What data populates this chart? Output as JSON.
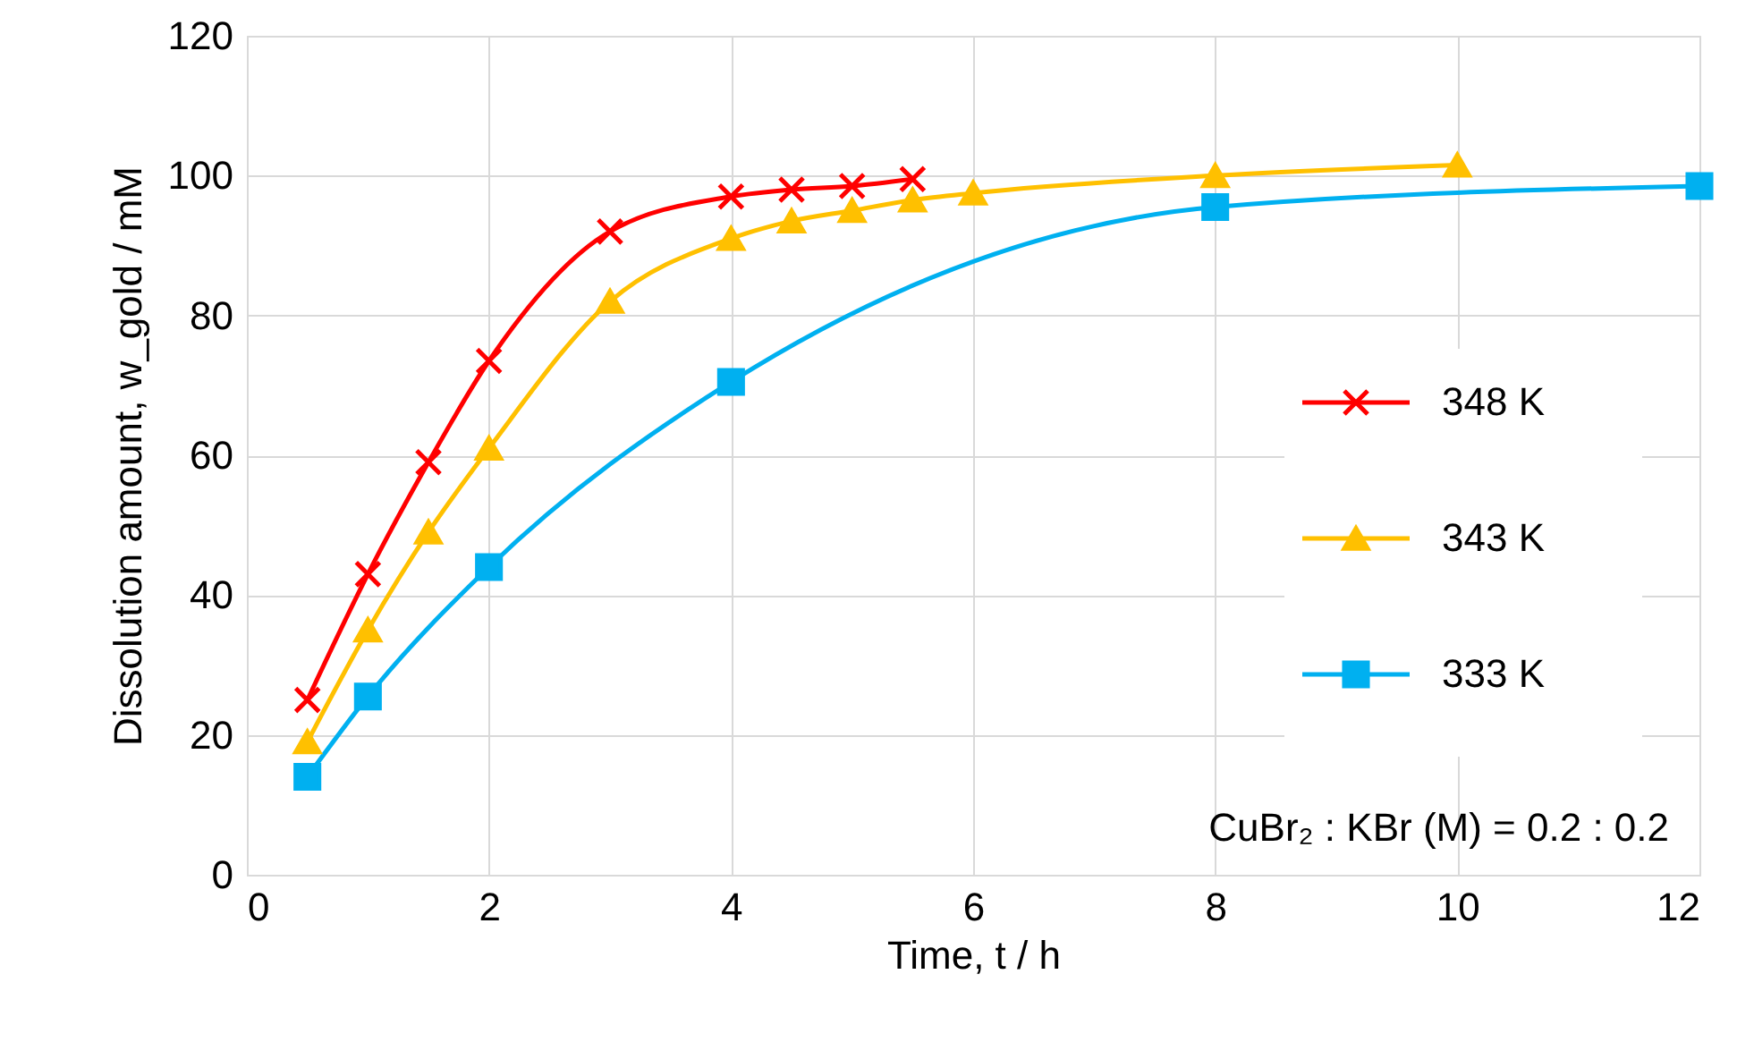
{
  "chart_data": {
    "type": "line",
    "xlabel": "Time, t / h",
    "ylabel": "Dissolution amount, w_gold / mM",
    "xlim": [
      0,
      12
    ],
    "xticks": [
      0,
      2,
      4,
      6,
      8,
      10,
      12
    ],
    "ylim": [
      0,
      120
    ],
    "yticks": [
      0,
      20,
      40,
      60,
      80,
      100,
      120
    ],
    "grid": true,
    "legend": "right",
    "line_style": "solid",
    "annotations": [
      {
        "text": "CuBr₂ : KBr (M) = 0.2 : 0.2"
      }
    ],
    "series": [
      {
        "name": "348 K",
        "color": "#ff0000",
        "marker": "cross",
        "x": [
          0.5,
          1,
          1.5,
          2,
          3,
          4,
          4.5,
          5,
          5.5
        ],
        "values": [
          25,
          43,
          59,
          73.5,
          92,
          97,
          98,
          98.5,
          99.5
        ]
      },
      {
        "name": "343 K",
        "color": "#ffc000",
        "marker": "triangle",
        "x": [
          0.5,
          1,
          1.5,
          2,
          3,
          4,
          4.5,
          5,
          5.5,
          6,
          8,
          10
        ],
        "values": [
          19,
          35,
          49,
          61,
          82,
          91,
          93.5,
          95,
          96.5,
          97.5,
          100,
          101.5
        ]
      },
      {
        "name": "333 K",
        "color": "#00b0f0",
        "marker": "square",
        "x": [
          0.5,
          1,
          2,
          4,
          8,
          12
        ],
        "values": [
          14,
          25.5,
          44,
          70.5,
          95.5,
          98.5
        ]
      }
    ]
  }
}
